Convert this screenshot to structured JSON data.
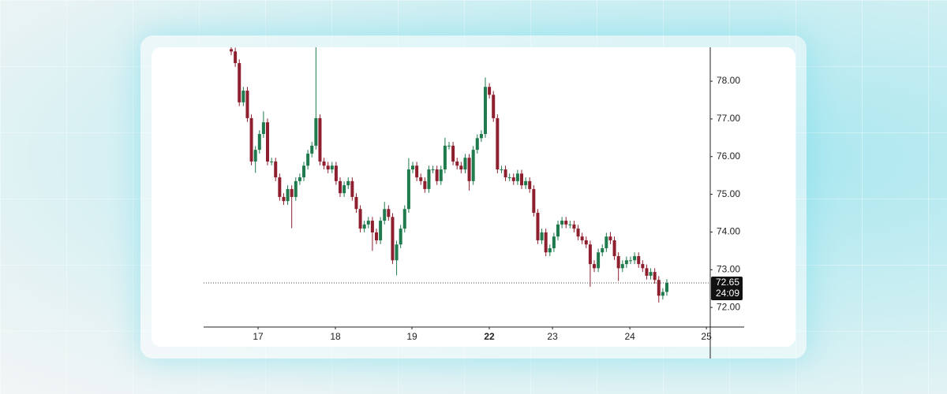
{
  "chart_data": {
    "type": "candlestick",
    "up_color": "#1f7a4d",
    "down_color": "#8e1f2f",
    "xlim": [
      -6.85,
      118.76
    ],
    "ylim": [
      71.48,
      78.9
    ],
    "xticks": [
      {
        "value": 6.65,
        "label": "17"
      },
      {
        "value": 25.83,
        "label": "18"
      },
      {
        "value": 44.81,
        "label": "19"
      },
      {
        "value": 63.99,
        "label": "22"
      },
      {
        "value": 79.65,
        "label": "23"
      },
      {
        "value": 98.83,
        "label": "24"
      },
      {
        "value": 117.8,
        "label": "25"
      }
    ],
    "yticks": [
      {
        "value": 72,
        "label": "72.00"
      },
      {
        "value": 73,
        "label": "73.00"
      },
      {
        "value": 74,
        "label": "74.00"
      },
      {
        "value": 75,
        "label": "75.00"
      },
      {
        "value": 76,
        "label": "76.00"
      },
      {
        "value": 77,
        "label": "77.00"
      },
      {
        "value": 78,
        "label": "78.00"
      }
    ],
    "last_price": 72.65,
    "countdown": "24:09",
    "x": [
      0,
      1,
      2,
      3,
      4,
      5,
      6,
      7,
      8,
      9,
      10,
      11,
      12,
      13,
      14,
      15,
      16,
      17,
      18,
      19,
      20,
      21,
      22,
      23,
      24,
      25,
      26,
      27,
      28,
      29,
      30,
      31,
      32,
      33,
      34,
      35,
      36,
      37,
      38,
      39,
      40,
      41,
      42,
      43,
      44,
      45,
      46,
      47,
      48,
      49,
      50,
      51,
      52,
      53,
      54,
      55,
      56,
      57,
      58,
      59,
      60,
      61,
      62,
      63,
      64,
      65,
      66,
      67,
      68,
      69,
      70,
      71,
      72,
      73,
      74,
      75,
      76,
      77,
      78,
      79,
      80,
      81,
      82,
      83,
      84,
      85,
      86,
      87,
      88,
      89,
      90,
      91,
      92,
      93,
      94,
      95,
      96,
      97,
      98,
      99,
      100,
      101,
      102,
      103,
      104,
      105,
      106,
      107,
      108
    ],
    "open": [
      78.85,
      78.79,
      78.48,
      77.44,
      77.75,
      77.02,
      75.87,
      76.18,
      76.6,
      76.91,
      75.87,
      75.87,
      75.45,
      74.93,
      74.82,
      75.14,
      74.93,
      75.35,
      75.45,
      75.76,
      76.08,
      76.29,
      77.02,
      75.87,
      75.76,
      75.66,
      75.76,
      75.35,
      75.03,
      75.24,
      75.35,
      74.93,
      74.61,
      74.09,
      74.2,
      74.3,
      73.99,
      73.78,
      74.3,
      74.61,
      74.4,
      73.25,
      73.67,
      74.09,
      74.61,
      75.66,
      75.76,
      75.45,
      75.35,
      75.14,
      75.66,
      75.66,
      75.35,
      75.66,
      76.29,
      76.29,
      75.87,
      75.76,
      75.66,
      75.97,
      75.35,
      76.18,
      76.49,
      76.6,
      77.85,
      77.64,
      77.02,
      75.66,
      75.66,
      75.45,
      75.45,
      75.35,
      75.55,
      75.24,
      75.35,
      75.14,
      74.51,
      73.78,
      73.99,
      73.46,
      73.57,
      73.88,
      74.2,
      74.3,
      74.2,
      74.2,
      74.09,
      73.88,
      73.78,
      73.67,
      73.15,
      73.04,
      73.46,
      73.57,
      73.88,
      73.78,
      73.36,
      73.04,
      73.15,
      73.25,
      73.25,
      73.36,
      73.15,
      73.04,
      72.84,
      72.94,
      72.73,
      72.31,
      72.41
    ],
    "close": [
      78.79,
      78.48,
      77.44,
      77.75,
      77.02,
      75.87,
      76.18,
      76.6,
      76.91,
      75.87,
      75.87,
      75.45,
      74.93,
      74.82,
      75.14,
      74.93,
      75.35,
      75.45,
      75.76,
      76.08,
      76.29,
      77.02,
      75.87,
      75.76,
      75.66,
      75.76,
      75.35,
      75.03,
      75.24,
      75.35,
      74.93,
      74.61,
      74.09,
      74.2,
      74.3,
      73.99,
      73.78,
      74.3,
      74.61,
      74.4,
      73.25,
      73.67,
      74.09,
      74.61,
      75.66,
      75.76,
      75.45,
      75.35,
      75.14,
      75.66,
      75.66,
      75.35,
      75.66,
      76.29,
      76.29,
      75.87,
      75.76,
      75.66,
      75.97,
      75.35,
      76.18,
      76.49,
      76.6,
      77.85,
      77.64,
      77.02,
      75.66,
      75.66,
      75.45,
      75.45,
      75.35,
      75.55,
      75.24,
      75.35,
      75.14,
      74.51,
      73.78,
      73.99,
      73.46,
      73.57,
      73.88,
      74.2,
      74.3,
      74.2,
      74.2,
      74.09,
      73.88,
      73.78,
      73.67,
      73.15,
      73.04,
      73.46,
      73.57,
      73.88,
      73.78,
      73.36,
      73.04,
      73.15,
      73.25,
      73.25,
      73.36,
      73.15,
      73.04,
      72.84,
      72.94,
      72.73,
      72.31,
      72.41,
      72.65
    ],
    "high": [
      78.95,
      78.89,
      78.58,
      77.85,
      77.85,
      77.12,
      76.28,
      76.7,
      77.2,
      77.01,
      75.97,
      75.97,
      75.55,
      75.03,
      75.24,
      75.24,
      75.45,
      75.55,
      75.86,
      76.18,
      76.39,
      78.9,
      77.12,
      75.97,
      75.86,
      75.86,
      75.86,
      75.45,
      75.34,
      75.45,
      75.45,
      75.03,
      74.71,
      74.3,
      74.4,
      74.4,
      74.09,
      74.4,
      74.8,
      74.71,
      74.5,
      73.77,
      74.19,
      74.71,
      75.96,
      75.86,
      75.86,
      75.55,
      75.45,
      75.76,
      75.76,
      75.76,
      75.76,
      76.5,
      76.39,
      76.39,
      75.97,
      75.86,
      76.07,
      76.07,
      76.28,
      76.59,
      76.7,
      78.1,
      77.95,
      77.74,
      77.12,
      75.76,
      75.76,
      75.55,
      75.55,
      75.65,
      75.65,
      75.45,
      75.45,
      75.24,
      74.61,
      74.09,
      74.09,
      73.67,
      73.98,
      74.3,
      74.4,
      74.4,
      74.3,
      74.3,
      74.19,
      73.98,
      73.88,
      73.77,
      73.25,
      73.56,
      73.67,
      73.98,
      74.0,
      73.88,
      73.46,
      73.25,
      73.35,
      73.35,
      73.46,
      73.46,
      73.25,
      73.14,
      73.04,
      73.04,
      72.83,
      72.51,
      72.75
    ],
    "low": [
      78.69,
      78.38,
      77.34,
      77.34,
      76.92,
      75.77,
      75.57,
      76.08,
      76.5,
      75.77,
      75.77,
      75.35,
      74.83,
      74.72,
      74.72,
      74.1,
      74.83,
      75.25,
      75.35,
      75.66,
      75.98,
      76.19,
      75.77,
      75.66,
      75.56,
      75.56,
      75.25,
      74.93,
      74.93,
      75.14,
      74.83,
      74.51,
      73.99,
      73.99,
      74.1,
      73.5,
      73.68,
      73.68,
      74.2,
      74.3,
      73.15,
      72.85,
      73.57,
      73.99,
      74.51,
      75.56,
      75.35,
      75.25,
      75.04,
      75.04,
      75.56,
      75.25,
      75.25,
      75.56,
      76.19,
      75.77,
      75.66,
      75.56,
      75.56,
      75.1,
      75.25,
      76.08,
      76.39,
      76.5,
      77.54,
      76.92,
      75.56,
      75.56,
      75.35,
      75.35,
      75.25,
      75.25,
      75.14,
      75.14,
      75.04,
      74.41,
      73.68,
      73.68,
      73.36,
      73.36,
      73.47,
      73.78,
      74.1,
      74.1,
      74.1,
      73.99,
      73.78,
      73.68,
      73.57,
      72.55,
      72.94,
      72.94,
      73.36,
      73.47,
      73.68,
      73.26,
      72.7,
      72.94,
      73.05,
      73.15,
      73.15,
      73.05,
      72.94,
      72.74,
      72.74,
      72.63,
      72.13,
      72.21,
      72.31
    ]
  }
}
